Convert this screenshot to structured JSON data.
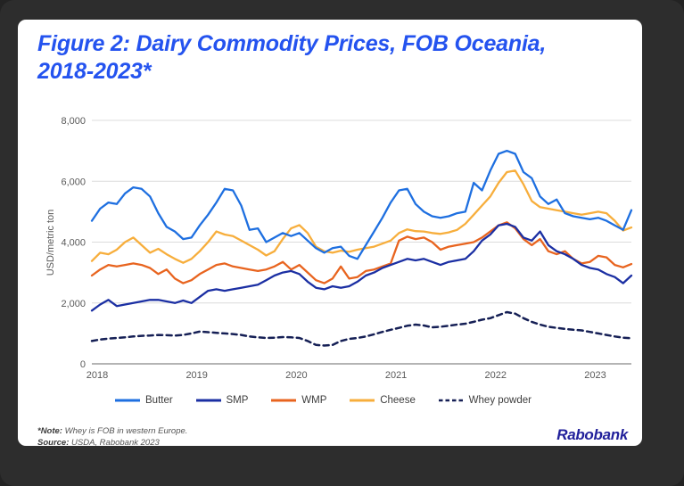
{
  "title": "Figure 2: Dairy Commodity Prices, FOB Oceania, 2018-2023*",
  "footnote": {
    "note_label": "*Note:",
    "note_text": " Whey is FOB in western Europe.",
    "source_label": "Source:",
    "source_text": " USDA, Rabobank 2023"
  },
  "logo_text": "Rabobank",
  "colors": {
    "title_blue": "#2453ef",
    "logo_blue": "#22219b",
    "gridline": "#dcdcdc",
    "axis_line": "#9b9b9b",
    "tick_text": "#595959"
  },
  "chart_data": {
    "type": "line",
    "title": "Dairy Commodity Prices, FOB Oceania, 2018-2023",
    "xlabel": "",
    "ylabel": "USD/metric ton",
    "ylim": [
      0,
      8000
    ],
    "grid": true,
    "legend_position": "bottom",
    "y_ticks": [
      0,
      2000,
      4000,
      6000,
      8000
    ],
    "y_tick_labels": [
      "0",
      "2,000",
      "4,000",
      "6,000",
      "8,000"
    ],
    "x_tick_labels": [
      "2018",
      "2019",
      "2020",
      "2021",
      "2022",
      "2023"
    ],
    "x_tick_indices": [
      0,
      12,
      24,
      36,
      48,
      60
    ],
    "x_unit": "monthly, Jan 2018 - Jun 2023",
    "series": [
      {
        "name": "Butter",
        "color": "#1e6fe0",
        "dashed": false,
        "values": [
          4700,
          5100,
          5300,
          5250,
          5600,
          5800,
          5750,
          5500,
          4950,
          4500,
          4350,
          4100,
          4150,
          4550,
          4900,
          5300,
          5750,
          5700,
          5200,
          4400,
          4450,
          4000,
          4150,
          4300,
          4200,
          4300,
          4050,
          3800,
          3650,
          3800,
          3850,
          3550,
          3450,
          3900,
          4350,
          4800,
          5300,
          5700,
          5750,
          5250,
          5000,
          4850,
          4800,
          4850,
          4950,
          5000,
          5950,
          5700,
          6350,
          6900,
          7000,
          6900,
          6300,
          6100,
          5500,
          5250,
          5400,
          4950,
          4850,
          4800,
          4750,
          4800,
          4700,
          4550,
          4400,
          5050
        ]
      },
      {
        "name": "SMP",
        "color": "#1b2fa3",
        "dashed": false,
        "values": [
          1750,
          1950,
          2100,
          1900,
          1950,
          2000,
          2050,
          2100,
          2100,
          2050,
          2000,
          2080,
          2000,
          2200,
          2400,
          2450,
          2400,
          2450,
          2500,
          2550,
          2600,
          2750,
          2900,
          3000,
          3050,
          2950,
          2700,
          2500,
          2450,
          2550,
          2500,
          2550,
          2700,
          2900,
          3000,
          3150,
          3250,
          3350,
          3450,
          3400,
          3450,
          3350,
          3250,
          3350,
          3400,
          3450,
          3700,
          4050,
          4250,
          4550,
          4600,
          4500,
          4150,
          4050,
          4350,
          3900,
          3700,
          3600,
          3450,
          3250,
          3150,
          3100,
          2950,
          2850,
          2650,
          2900
        ]
      },
      {
        "name": "WMP",
        "color": "#e8641f",
        "dashed": false,
        "values": [
          2900,
          3100,
          3250,
          3200,
          3250,
          3300,
          3250,
          3150,
          2950,
          3100,
          2800,
          2650,
          2750,
          2950,
          3100,
          3250,
          3300,
          3200,
          3150,
          3100,
          3050,
          3100,
          3200,
          3350,
          3100,
          3250,
          3000,
          2750,
          2650,
          2800,
          3200,
          2800,
          2850,
          3050,
          3100,
          3200,
          3300,
          4050,
          4180,
          4100,
          4150,
          4000,
          3750,
          3850,
          3900,
          3950,
          4000,
          4150,
          4350,
          4550,
          4650,
          4450,
          4100,
          3900,
          4100,
          3700,
          3600,
          3700,
          3450,
          3300,
          3350,
          3550,
          3500,
          3250,
          3170,
          3280
        ]
      },
      {
        "name": "Cheese",
        "color": "#f7ae3c",
        "dashed": false,
        "values": [
          3380,
          3650,
          3600,
          3750,
          4000,
          4150,
          3900,
          3650,
          3780,
          3600,
          3450,
          3320,
          3450,
          3700,
          4000,
          4350,
          4250,
          4200,
          4050,
          3900,
          3750,
          3560,
          3700,
          4100,
          4450,
          4560,
          4300,
          3850,
          3700,
          3650,
          3720,
          3680,
          3750,
          3800,
          3850,
          3950,
          4050,
          4300,
          4420,
          4360,
          4350,
          4300,
          4270,
          4320,
          4400,
          4600,
          4900,
          5200,
          5500,
          5950,
          6300,
          6350,
          5900,
          5350,
          5150,
          5100,
          5050,
          5000,
          4950,
          4900,
          4950,
          5000,
          4950,
          4700,
          4380,
          4480
        ]
      },
      {
        "name": "Whey powder",
        "color": "#151f55",
        "dashed": true,
        "values": [
          750,
          800,
          830,
          850,
          870,
          900,
          920,
          930,
          950,
          940,
          930,
          950,
          1000,
          1060,
          1040,
          1020,
          1000,
          980,
          950,
          900,
          870,
          850,
          860,
          880,
          870,
          850,
          750,
          620,
          600,
          620,
          750,
          820,
          850,
          900,
          970,
          1050,
          1120,
          1180,
          1250,
          1290,
          1260,
          1200,
          1220,
          1250,
          1290,
          1320,
          1380,
          1450,
          1500,
          1600,
          1700,
          1650,
          1500,
          1380,
          1290,
          1220,
          1180,
          1150,
          1120,
          1100,
          1050,
          1000,
          950,
          900,
          860,
          840
        ]
      }
    ]
  }
}
